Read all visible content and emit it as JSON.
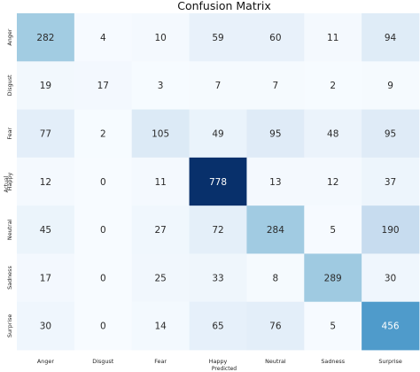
{
  "chart_data": {
    "type": "heatmap",
    "title": "Confusion Matrix",
    "xlabel": "Predicted",
    "ylabel": "Actual",
    "x_categories": [
      "Anger",
      "Disgust",
      "Fear",
      "Happy",
      "Neutral",
      "Sadness",
      "Surprise"
    ],
    "y_categories": [
      "Anger",
      "Disgust",
      "Fear",
      "Happy",
      "Neutral",
      "Sadness",
      "Surprise"
    ],
    "values": [
      [
        282,
        4,
        10,
        59,
        60,
        11,
        94
      ],
      [
        19,
        17,
        3,
        7,
        7,
        2,
        9
      ],
      [
        77,
        2,
        105,
        49,
        95,
        48,
        95
      ],
      [
        12,
        0,
        11,
        778,
        13,
        12,
        37
      ],
      [
        45,
        0,
        27,
        72,
        284,
        5,
        190
      ],
      [
        17,
        0,
        25,
        33,
        8,
        289,
        30
      ],
      [
        30,
        0,
        14,
        65,
        76,
        5,
        456
      ]
    ],
    "colormap": "Blues",
    "colorbar": false,
    "grid": false
  }
}
